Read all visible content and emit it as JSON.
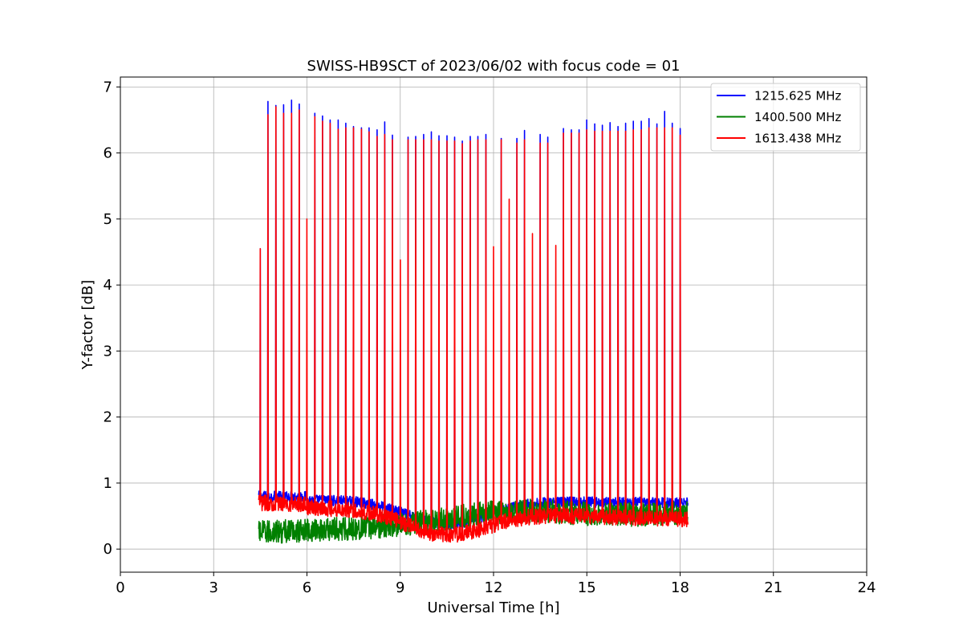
{
  "chart_data": {
    "type": "line",
    "title": "SWISS-HB9SCT of 2023/06/02 with focus code = 01",
    "xlabel": "Universal Time [h]",
    "ylabel": "Y-factor [dB]",
    "xlim": [
      0,
      24
    ],
    "ylim": [
      -0.35,
      7.15
    ],
    "xticks": [
      0,
      3,
      6,
      9,
      12,
      15,
      18,
      21,
      24
    ],
    "yticks": [
      0,
      1,
      2,
      3,
      4,
      5,
      6,
      7
    ],
    "grid": true,
    "legend_position": "top-right",
    "data_range_hours": [
      4.45,
      18.25
    ],
    "series": [
      {
        "name": "1215.625 MHz",
        "color": "#0000ff",
        "baseline_start": 0.75,
        "baseline_end": 0.7,
        "noise": 0.08,
        "peak_times": [
          4.5,
          4.75,
          5.0,
          5.25,
          5.5,
          5.75,
          6.25,
          6.5,
          6.75,
          7.0,
          7.25,
          7.5,
          7.75,
          8.0,
          8.25,
          8.5,
          8.75,
          9.25,
          9.5,
          9.75,
          10.0,
          10.25,
          10.5,
          10.75,
          11.0,
          11.25,
          11.5,
          11.75,
          12.25,
          12.75,
          13.0,
          13.5,
          13.75,
          14.25,
          14.5,
          14.75,
          15.0,
          15.25,
          15.5,
          15.75,
          16.0,
          16.25,
          16.5,
          16.75,
          17.0,
          17.25,
          17.5,
          17.75,
          18.0
        ],
        "peak_values": [
          4.55,
          6.78,
          6.72,
          6.73,
          6.8,
          6.74,
          6.6,
          6.56,
          6.5,
          6.5,
          6.45,
          6.4,
          6.38,
          6.38,
          6.35,
          6.47,
          6.27,
          6.24,
          6.25,
          6.28,
          6.32,
          6.26,
          6.26,
          6.24,
          6.18,
          6.25,
          6.25,
          6.28,
          6.22,
          6.22,
          6.34,
          6.28,
          6.24,
          6.37,
          6.35,
          6.35,
          6.5,
          6.44,
          6.42,
          6.46,
          6.4,
          6.45,
          6.48,
          6.48,
          6.52,
          6.44,
          6.63,
          6.45,
          6.37
        ]
      },
      {
        "name": "1400.500 MHz",
        "color": "#008000",
        "baseline_start": 0.25,
        "baseline_end": 0.55,
        "noise": 0.18,
        "peak_times": [],
        "peak_values": []
      },
      {
        "name": "1613.438 MHz",
        "color": "#ff0000",
        "baseline_start": 0.65,
        "baseline_end": 0.45,
        "noise": 0.12,
        "peak_times": [
          4.5,
          4.75,
          5.0,
          5.25,
          5.5,
          5.75,
          6.0,
          6.25,
          6.5,
          6.75,
          7.0,
          7.25,
          7.5,
          7.75,
          8.0,
          8.25,
          8.5,
          8.75,
          9.0,
          9.25,
          9.5,
          9.75,
          10.0,
          10.25,
          10.5,
          10.75,
          11.0,
          11.25,
          11.5,
          11.75,
          12.0,
          12.25,
          12.5,
          12.75,
          13.0,
          13.25,
          13.5,
          13.75,
          14.0,
          14.25,
          14.5,
          14.75,
          15.0,
          15.25,
          15.5,
          15.75,
          16.0,
          16.25,
          16.5,
          16.75,
          17.0,
          17.25,
          17.5,
          17.75,
          18.0
        ],
        "peak_values": [
          4.55,
          6.58,
          6.7,
          6.6,
          6.6,
          6.65,
          5.0,
          6.55,
          6.48,
          6.45,
          6.36,
          6.38,
          6.38,
          6.36,
          6.32,
          6.25,
          6.28,
          6.2,
          4.38,
          6.2,
          6.2,
          6.2,
          6.2,
          6.18,
          6.18,
          6.18,
          6.14,
          6.18,
          6.2,
          6.2,
          4.58,
          6.2,
          5.3,
          6.15,
          6.2,
          4.78,
          6.15,
          6.15,
          4.6,
          6.3,
          6.3,
          6.3,
          6.35,
          6.33,
          6.33,
          6.33,
          6.33,
          6.33,
          6.35,
          6.35,
          6.38,
          6.38,
          6.38,
          6.38,
          6.27
        ]
      }
    ]
  }
}
